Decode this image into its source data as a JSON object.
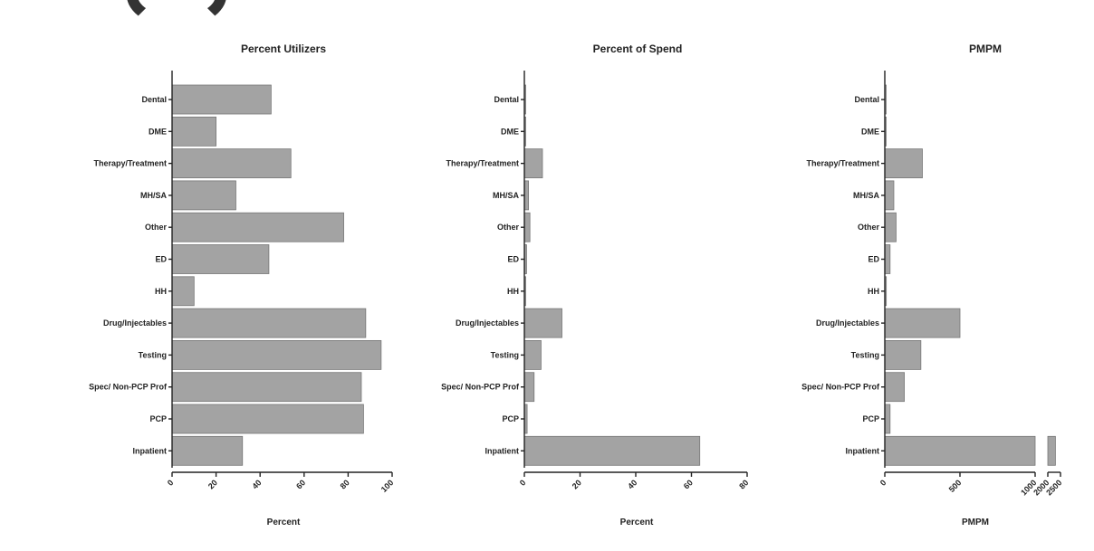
{
  "chart_data": [
    {
      "type": "bar",
      "orientation": "horizontal",
      "title": "Percent Utilizers",
      "xlabel": "Percent",
      "ylabel": "",
      "categories": [
        "Dental",
        "DME",
        "Therapy/Treatment",
        "MH/SA",
        "Other",
        "ED",
        "HH",
        "Drug/Injectables",
        "Testing",
        "Spec/ Non-PCP Prof",
        "PCP",
        "Inpatient"
      ],
      "values": [
        45,
        20,
        54,
        29,
        78,
        44,
        10,
        88,
        95,
        86,
        87,
        32
      ],
      "xlim": [
        0,
        100
      ],
      "ticks": [
        "0",
        "20",
        "40",
        "60",
        "80",
        "100"
      ],
      "tick_values": [
        0,
        20,
        40,
        60,
        80,
        100
      ]
    },
    {
      "type": "bar",
      "orientation": "horizontal",
      "title": "Percent of Spend",
      "xlabel": "Percent",
      "ylabel": "",
      "categories": [
        "Dental",
        "DME",
        "Therapy/Treatment",
        "MH/SA",
        "Other",
        "ED",
        "HH",
        "Drug/Injectables",
        "Testing",
        "Spec/ Non-PCP Prof",
        "PCP",
        "Inpatient"
      ],
      "values": [
        0.2,
        0.2,
        6.5,
        1.5,
        2,
        0.8,
        0.3,
        13.5,
        6,
        3.5,
        1,
        63
      ],
      "xlim": [
        0,
        80
      ],
      "ticks": [
        "0",
        "20",
        "40",
        "60",
        "80"
      ],
      "tick_values": [
        0,
        20,
        40,
        60,
        80
      ]
    },
    {
      "type": "bar",
      "orientation": "horizontal",
      "title": "PMPM",
      "xlabel": "PMPM",
      "ylabel": "",
      "categories": [
        "Dental",
        "DME",
        "Therapy/Treatment",
        "MH/SA",
        "Other",
        "ED",
        "HH",
        "Drug/Injectables",
        "Testing",
        "Spec/ Non-PCP Prof",
        "PCP",
        "Inpatient"
      ],
      "values": [
        5,
        5,
        250,
        60,
        75,
        35,
        10,
        500,
        240,
        130,
        35,
        2300
      ],
      "axis_break": [
        1000,
        2000
      ],
      "ticks": [
        "0",
        "500",
        "1000",
        "2000",
        "2500"
      ],
      "tick_values": [
        0,
        500,
        1000,
        2000,
        2500
      ]
    }
  ]
}
